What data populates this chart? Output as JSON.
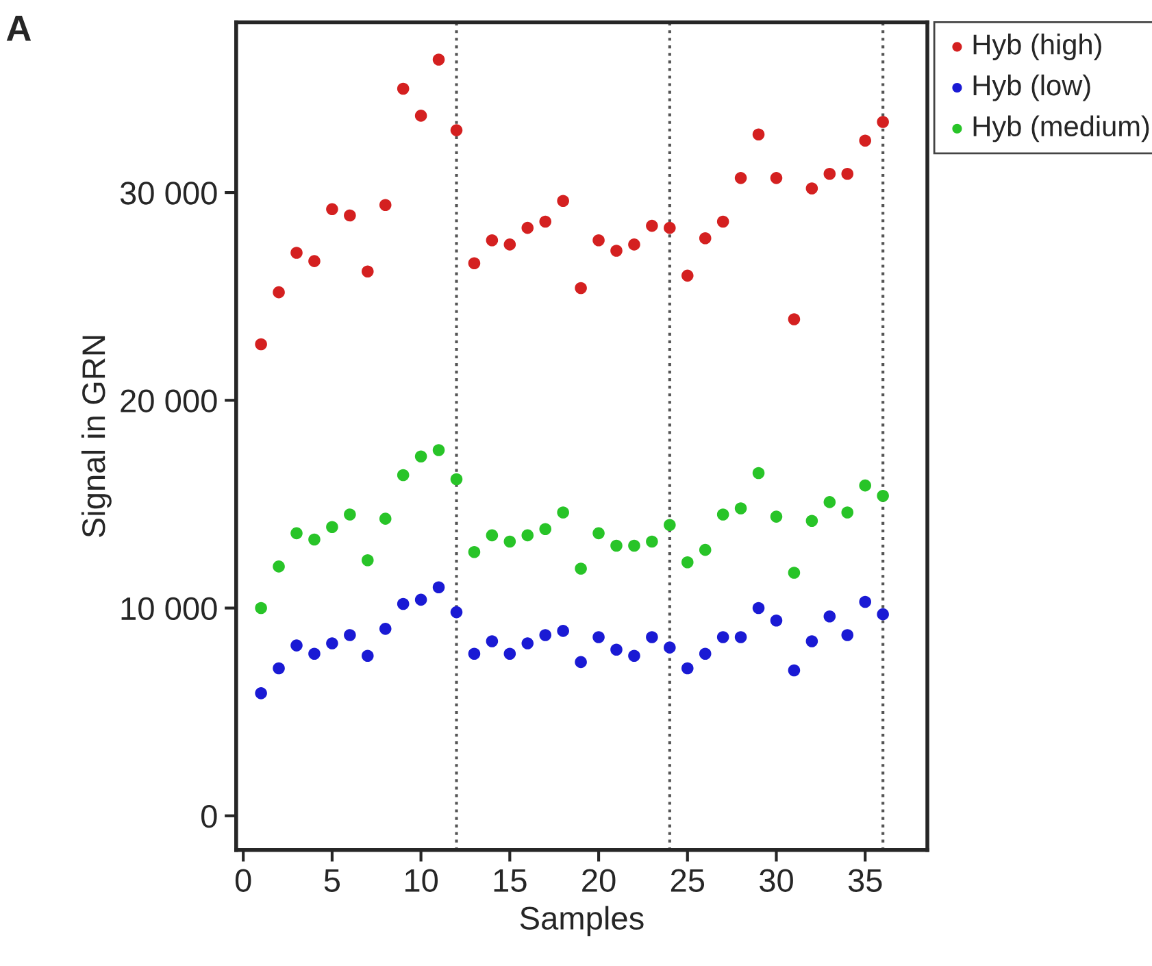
{
  "chart_data": {
    "type": "scatter",
    "title": "A",
    "xlabel": "Samples",
    "ylabel": "Signal in GRN",
    "x": [
      1,
      2,
      3,
      4,
      5,
      6,
      7,
      8,
      9,
      10,
      11,
      12,
      13,
      14,
      15,
      16,
      17,
      18,
      19,
      20,
      21,
      22,
      23,
      24,
      25,
      26,
      27,
      28,
      29,
      30,
      31,
      32,
      33,
      34,
      35,
      36
    ],
    "series": [
      {
        "name": "Hyb (high)",
        "color": "#d42020",
        "values": [
          22700,
          25200,
          27100,
          26700,
          29200,
          28900,
          26200,
          29400,
          35000,
          33700,
          36400,
          33000,
          26600,
          27700,
          27500,
          28300,
          28600,
          29600,
          25400,
          27700,
          27200,
          27500,
          28400,
          28300,
          26000,
          27800,
          28600,
          30700,
          32800,
          30700,
          23900,
          30200,
          30900,
          30900,
          32500,
          33400
        ]
      },
      {
        "name": "Hyb (low)",
        "color": "#1a1ad4",
        "values": [
          5900,
          7100,
          8200,
          7800,
          8300,
          8700,
          7700,
          9000,
          10200,
          10400,
          11000,
          9800,
          7800,
          8400,
          7800,
          8300,
          8700,
          8900,
          7400,
          8600,
          8000,
          7700,
          8600,
          8100,
          7100,
          7800,
          8600,
          8600,
          10000,
          9400,
          7000,
          8400,
          9600,
          8700,
          10300,
          9700
        ]
      },
      {
        "name": "Hyb (medium)",
        "color": "#28c428",
        "values": [
          10000,
          12000,
          13600,
          13300,
          13900,
          14500,
          12300,
          14300,
          16400,
          17300,
          17600,
          16200,
          12700,
          13500,
          13200,
          13500,
          13800,
          14600,
          11900,
          13600,
          13000,
          13000,
          13200,
          14000,
          12200,
          12800,
          14500,
          14800,
          16500,
          14400,
          11700,
          14200,
          15100,
          14600,
          15900,
          15400
        ]
      }
    ],
    "xlim": [
      -0.4,
      38.5
    ],
    "ylim": [
      -1650,
      38200
    ],
    "xticks": [
      0,
      5,
      10,
      15,
      20,
      25,
      30,
      35
    ],
    "yticks": [
      0,
      {
        "value": 10000,
        "label": "10 000"
      },
      {
        "value": 20000,
        "label": "20 000"
      },
      {
        "value": 30000,
        "label": "30 000"
      }
    ],
    "ref_lines": [
      {
        "axis": "x",
        "value": 12,
        "color": "#555555",
        "line_style": "dotted"
      },
      {
        "axis": "x",
        "value": 24,
        "color": "#555555",
        "line_style": "dotted"
      },
      {
        "axis": "x",
        "value": 36,
        "color": "#555555",
        "line_style": "dotted"
      }
    ],
    "marker": "circle",
    "grid": false,
    "legend": "right"
  }
}
